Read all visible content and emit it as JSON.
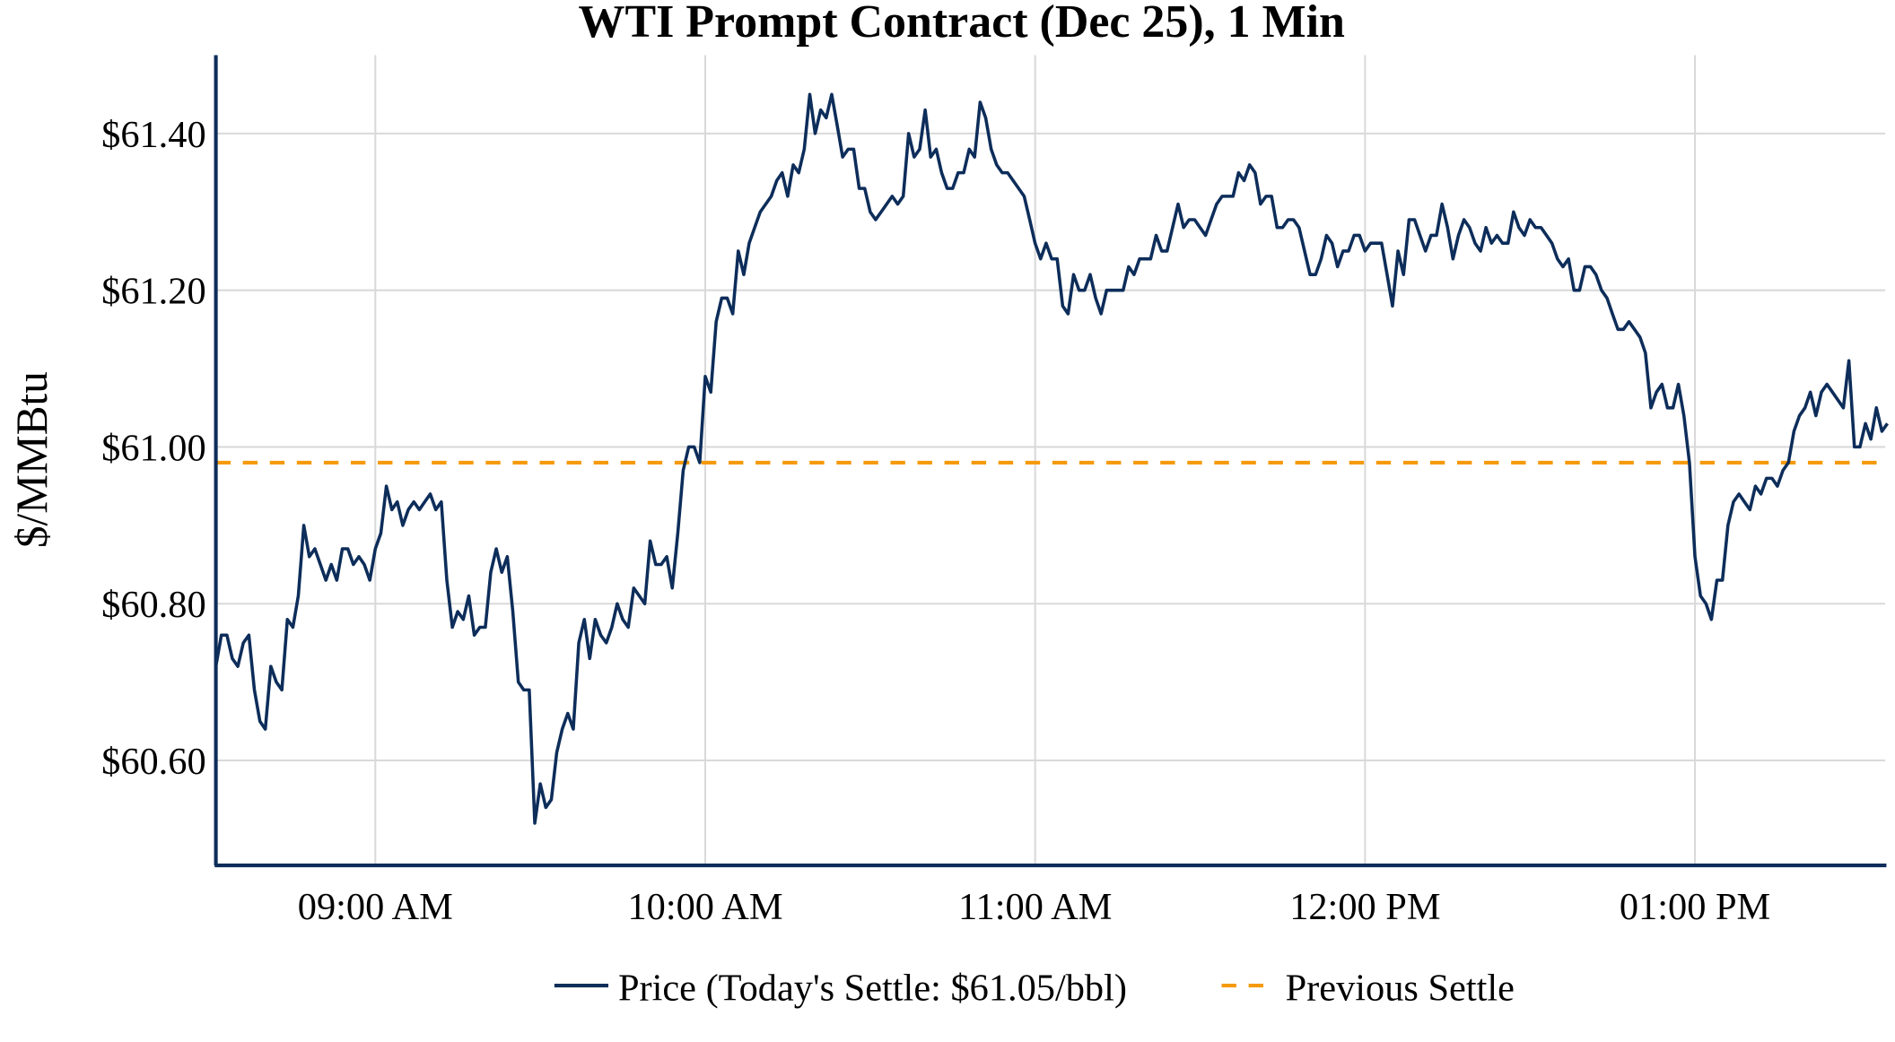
{
  "chart_data": {
    "type": "line",
    "title": "WTI Prompt Contract (Dec 25), 1 Min",
    "xlabel": "",
    "ylabel": "$/MMBtu",
    "x_start_time": "08:31 AM",
    "x_interval_minutes": 1,
    "xlim_minutes": [
      0,
      303.6
    ],
    "ylim": [
      60.466,
      61.5
    ],
    "grid": true,
    "legend_placement": "bottom-center",
    "x_ticks": [
      {
        "label": "09:00 AM",
        "minute": 29
      },
      {
        "label": "10:00 AM",
        "minute": 89
      },
      {
        "label": "11:00 AM",
        "minute": 149
      },
      {
        "label": "12:00 PM",
        "minute": 209
      },
      {
        "label": "01:00 PM",
        "minute": 269
      }
    ],
    "y_ticks": [
      {
        "label": "$60.60",
        "value": 60.6
      },
      {
        "label": "$60.80",
        "value": 60.8
      },
      {
        "label": "$61.00",
        "value": 61.0
      },
      {
        "label": "$61.20",
        "value": 61.2
      },
      {
        "label": "$61.40",
        "value": 61.4
      }
    ],
    "series": [
      {
        "name": "Price (Today's Settle: $61.05/bbl)",
        "color": "#0d2d5a",
        "style": "solid",
        "values": [
          60.72,
          60.76,
          60.76,
          60.73,
          60.72,
          60.75,
          60.76,
          60.69,
          60.65,
          60.64,
          60.72,
          60.7,
          60.69,
          60.78,
          60.77,
          60.81,
          60.9,
          60.86,
          60.87,
          60.85,
          60.83,
          60.85,
          60.83,
          60.87,
          60.87,
          60.85,
          60.86,
          60.85,
          60.83,
          60.87,
          60.89,
          60.95,
          60.92,
          60.93,
          60.9,
          60.92,
          60.93,
          60.92,
          60.93,
          60.94,
          60.92,
          60.93,
          60.83,
          60.77,
          60.79,
          60.78,
          60.81,
          60.76,
          60.77,
          60.77,
          60.84,
          60.87,
          60.84,
          60.86,
          60.79,
          60.7,
          60.69,
          60.69,
          60.52,
          60.57,
          60.54,
          60.55,
          60.61,
          60.64,
          60.66,
          60.64,
          60.75,
          60.78,
          60.73,
          60.78,
          60.76,
          60.75,
          60.77,
          60.8,
          60.78,
          60.77,
          60.82,
          60.81,
          60.8,
          60.88,
          60.85,
          60.85,
          60.86,
          60.82,
          60.89,
          60.97,
          61.0,
          61.0,
          60.98,
          61.09,
          61.07,
          61.16,
          61.19,
          61.19,
          61.17,
          61.25,
          61.22,
          61.26,
          61.28,
          61.3,
          61.31,
          61.32,
          61.34,
          61.35,
          61.32,
          61.36,
          61.35,
          61.38,
          61.45,
          61.4,
          61.43,
          61.42,
          61.45,
          61.41,
          61.37,
          61.38,
          61.38,
          61.33,
          61.33,
          61.3,
          61.29,
          61.3,
          61.31,
          61.32,
          61.31,
          61.32,
          61.4,
          61.37,
          61.38,
          61.43,
          61.37,
          61.38,
          61.35,
          61.33,
          61.33,
          61.35,
          61.35,
          61.38,
          61.37,
          61.44,
          61.42,
          61.38,
          61.36,
          61.35,
          61.35,
          61.34,
          61.33,
          61.32,
          61.29,
          61.26,
          61.24,
          61.26,
          61.24,
          61.24,
          61.18,
          61.17,
          61.22,
          61.2,
          61.2,
          61.22,
          61.19,
          61.17,
          61.2,
          61.2,
          61.2,
          61.2,
          61.23,
          61.22,
          61.24,
          61.24,
          61.24,
          61.27,
          61.25,
          61.25,
          61.28,
          61.31,
          61.28,
          61.29,
          61.29,
          61.28,
          61.27,
          61.29,
          61.31,
          61.32,
          61.32,
          61.32,
          61.35,
          61.34,
          61.36,
          61.35,
          61.31,
          61.32,
          61.32,
          61.28,
          61.28,
          61.29,
          61.29,
          61.28,
          61.25,
          61.22,
          61.22,
          61.24,
          61.27,
          61.26,
          61.23,
          61.25,
          61.25,
          61.27,
          61.27,
          61.25,
          61.26,
          61.26,
          61.26,
          61.22,
          61.18,
          61.25,
          61.22,
          61.29,
          61.29,
          61.27,
          61.25,
          61.27,
          61.27,
          61.31,
          61.28,
          61.24,
          61.27,
          61.29,
          61.28,
          61.26,
          61.25,
          61.28,
          61.26,
          61.27,
          61.26,
          61.26,
          61.3,
          61.28,
          61.27,
          61.29,
          61.28,
          61.28,
          61.27,
          61.26,
          61.24,
          61.23,
          61.24,
          61.2,
          61.2,
          61.23,
          61.23,
          61.22,
          61.2,
          61.19,
          61.17,
          61.15,
          61.15,
          61.16,
          61.15,
          61.14,
          61.12,
          61.05,
          61.07,
          61.08,
          61.05,
          61.05,
          61.08,
          61.04,
          60.98,
          60.86,
          60.81,
          60.8,
          60.78,
          60.83,
          60.83,
          60.9,
          60.93,
          60.94,
          60.93,
          60.92,
          60.95,
          60.94,
          60.96,
          60.96,
          60.95,
          60.97,
          60.98,
          61.02,
          61.04,
          61.05,
          61.07,
          61.04,
          61.07,
          61.08,
          61.07,
          61.06,
          61.05,
          61.11,
          61.0,
          61.0,
          61.03,
          61.01,
          61.05,
          61.02,
          61.03
        ]
      },
      {
        "name": "Previous Settle",
        "color": "#f59a0c",
        "style": "dashed",
        "value": 60.98
      }
    ]
  }
}
